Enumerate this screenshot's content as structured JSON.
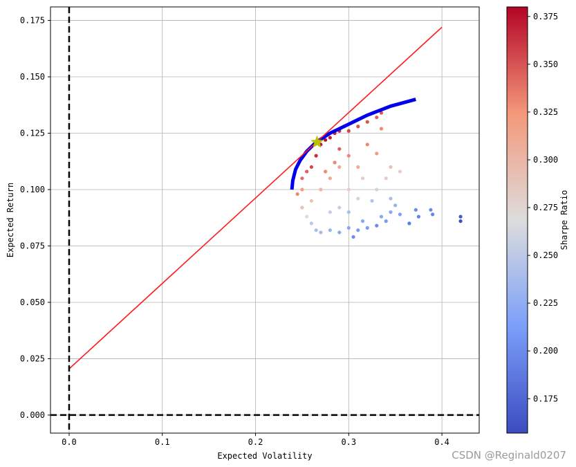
{
  "chart_data": {
    "type": "scatter",
    "xlabel": "Expected Volatility",
    "ylabel": "Expected Return",
    "xlim": [
      -0.02,
      0.44
    ],
    "ylim": [
      -0.008,
      0.181
    ],
    "xticks": [
      {
        "value": 0.0,
        "label": "0.0"
      },
      {
        "value": 0.1,
        "label": "0.1"
      },
      {
        "value": 0.2,
        "label": "0.2"
      },
      {
        "value": 0.3,
        "label": "0.3"
      },
      {
        "value": 0.4,
        "label": "0.4"
      }
    ],
    "yticks": [
      {
        "value": 0.0,
        "label": "0.000"
      },
      {
        "value": 0.025,
        "label": "0.025"
      },
      {
        "value": 0.05,
        "label": "0.050"
      },
      {
        "value": 0.075,
        "label": "0.075"
      },
      {
        "value": 0.1,
        "label": "0.100"
      },
      {
        "value": 0.125,
        "label": "0.125"
      },
      {
        "value": 0.15,
        "label": "0.150"
      },
      {
        "value": 0.175,
        "label": "0.175"
      }
    ],
    "grid": true,
    "colormap": "coolwarm",
    "colorbar": {
      "label": "Sharpe Ratio",
      "range": [
        0.157,
        0.38
      ],
      "ticks": [
        {
          "value": 0.175,
          "label": "0.175"
        },
        {
          "value": 0.2,
          "label": "0.200"
        },
        {
          "value": 0.225,
          "label": "0.225"
        },
        {
          "value": 0.25,
          "label": "0.250"
        },
        {
          "value": 0.275,
          "label": "0.275"
        },
        {
          "value": 0.3,
          "label": "0.300"
        },
        {
          "value": 0.325,
          "label": "0.325"
        },
        {
          "value": 0.35,
          "label": "0.350"
        },
        {
          "value": 0.375,
          "label": "0.375"
        }
      ]
    },
    "series": [
      {
        "kind": "scatter",
        "description_values": "simulated portfolios colored by Sharpe ratio",
        "points": [
          [
            0.245,
            0.098,
            0.33
          ],
          [
            0.25,
            0.092,
            0.29
          ],
          [
            0.255,
            0.088,
            0.27
          ],
          [
            0.26,
            0.085,
            0.25
          ],
          [
            0.265,
            0.082,
            0.24
          ],
          [
            0.27,
            0.081,
            0.235
          ],
          [
            0.28,
            0.082,
            0.23
          ],
          [
            0.29,
            0.081,
            0.22
          ],
          [
            0.3,
            0.083,
            0.22
          ],
          [
            0.305,
            0.079,
            0.2
          ],
          [
            0.31,
            0.082,
            0.21
          ],
          [
            0.315,
            0.086,
            0.22
          ],
          [
            0.32,
            0.083,
            0.21
          ],
          [
            0.33,
            0.084,
            0.2
          ],
          [
            0.335,
            0.088,
            0.22
          ],
          [
            0.34,
            0.086,
            0.21
          ],
          [
            0.345,
            0.09,
            0.22
          ],
          [
            0.35,
            0.093,
            0.23
          ],
          [
            0.355,
            0.089,
            0.215
          ],
          [
            0.365,
            0.085,
            0.19
          ],
          [
            0.372,
            0.091,
            0.2
          ],
          [
            0.375,
            0.088,
            0.195
          ],
          [
            0.388,
            0.091,
            0.2
          ],
          [
            0.39,
            0.089,
            0.195
          ],
          [
            0.42,
            0.088,
            0.165
          ],
          [
            0.42,
            0.086,
            0.16
          ],
          [
            0.26,
            0.11,
            0.355
          ],
          [
            0.265,
            0.115,
            0.365
          ],
          [
            0.27,
            0.12,
            0.37
          ],
          [
            0.275,
            0.122,
            0.375
          ],
          [
            0.28,
            0.123,
            0.37
          ],
          [
            0.285,
            0.125,
            0.368
          ],
          [
            0.29,
            0.126,
            0.365
          ],
          [
            0.295,
            0.128,
            0.36
          ],
          [
            0.3,
            0.126,
            0.355
          ],
          [
            0.31,
            0.128,
            0.35
          ],
          [
            0.32,
            0.13,
            0.35
          ],
          [
            0.33,
            0.132,
            0.345
          ],
          [
            0.335,
            0.134,
            0.35
          ],
          [
            0.335,
            0.127,
            0.33
          ],
          [
            0.32,
            0.12,
            0.33
          ],
          [
            0.33,
            0.116,
            0.32
          ],
          [
            0.345,
            0.11,
            0.29
          ],
          [
            0.355,
            0.108,
            0.28
          ],
          [
            0.34,
            0.105,
            0.28
          ],
          [
            0.33,
            0.1,
            0.26
          ],
          [
            0.3,
            0.1,
            0.28
          ],
          [
            0.31,
            0.096,
            0.26
          ],
          [
            0.29,
            0.11,
            0.31
          ],
          [
            0.28,
            0.105,
            0.31
          ],
          [
            0.27,
            0.1,
            0.3
          ],
          [
            0.26,
            0.095,
            0.29
          ],
          [
            0.25,
            0.1,
            0.32
          ],
          [
            0.25,
            0.105,
            0.34
          ],
          [
            0.255,
            0.108,
            0.345
          ],
          [
            0.3,
            0.09,
            0.24
          ],
          [
            0.29,
            0.092,
            0.255
          ],
          [
            0.28,
            0.09,
            0.255
          ],
          [
            0.31,
            0.11,
            0.31
          ],
          [
            0.3,
            0.115,
            0.33
          ],
          [
            0.29,
            0.118,
            0.345
          ],
          [
            0.285,
            0.112,
            0.33
          ],
          [
            0.275,
            0.108,
            0.33
          ],
          [
            0.315,
            0.105,
            0.28
          ],
          [
            0.325,
            0.095,
            0.245
          ],
          [
            0.345,
            0.096,
            0.24
          ]
        ]
      },
      {
        "kind": "line",
        "name_text": "",
        "color": "#0000ee",
        "points": [
          [
            0.239,
            0.1
          ],
          [
            0.24,
            0.104
          ],
          [
            0.243,
            0.109
          ],
          [
            0.248,
            0.113
          ],
          [
            0.255,
            0.117
          ],
          [
            0.265,
            0.121
          ],
          [
            0.28,
            0.125
          ],
          [
            0.3,
            0.129
          ],
          [
            0.32,
            0.133
          ],
          [
            0.345,
            0.137
          ],
          [
            0.372,
            0.14
          ]
        ]
      },
      {
        "kind": "line",
        "color": "#ff1a1a",
        "points": [
          [
            0.0,
            0.0205
          ],
          [
            0.4,
            0.172
          ]
        ]
      }
    ],
    "marker": {
      "x": 0.266,
      "y": 0.121,
      "color": "#b8c400"
    },
    "reference_lines": [
      {
        "orientation": "vertical",
        "value": 0.0
      },
      {
        "orientation": "horizontal",
        "value": 0.0
      }
    ]
  },
  "watermark": "CSDN @Reginald0207"
}
